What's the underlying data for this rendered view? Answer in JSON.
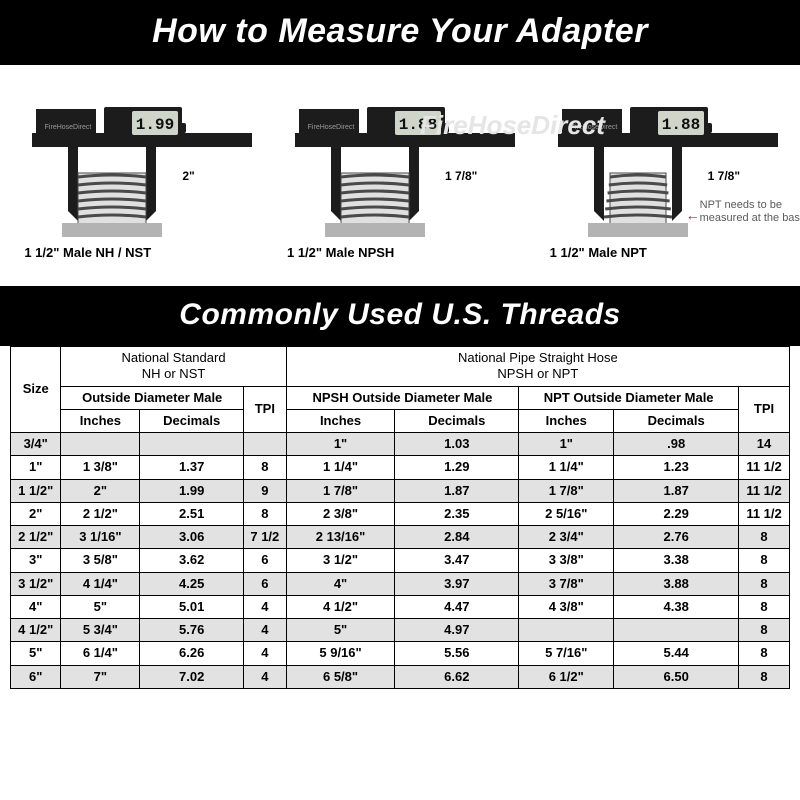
{
  "titles": {
    "main": "How to Measure Your Adapter",
    "sub": "Commonly Used U.S. Threads"
  },
  "watermarks": {
    "brand": "FireHoseDirect",
    "caliper_brand": "FireHoseDirect"
  },
  "diagrams": [
    {
      "reading": "1.99",
      "measure": "2\"",
      "label": "1 1/2\" Male NH / NST",
      "tapered": false,
      "note": null
    },
    {
      "reading": "1.88",
      "measure": "1 7/8\"",
      "label": "1 1/2\" Male NPSH",
      "tapered": false,
      "note": null
    },
    {
      "reading": "1.88",
      "measure": "1 7/8\"",
      "label": "1 1/2\" Male NPT",
      "tapered": true,
      "note": "NPT needs to be measured at the base"
    }
  ],
  "table": {
    "size_header": "Size",
    "groups": [
      {
        "title_top": "National Standard",
        "title_bot": "NH or NST"
      },
      {
        "title_top": "National Pipe Straight Hose",
        "title_bot": "NPSH or NPT"
      }
    ],
    "subheaders": {
      "nh_od": "Outside Diameter Male",
      "tpi": "TPI",
      "npsh_od": "NPSH Outside Diameter Male",
      "npt_od": "NPT Outside Diameter Male",
      "inches": "Inches",
      "decimals": "Decimals"
    },
    "rows": [
      {
        "size": "3/4\"",
        "nh_in": "",
        "nh_dec": "",
        "nh_tpi": "",
        "npsh_in": "1\"",
        "npsh_dec": "1.03",
        "npt_in": "1\"",
        "npt_dec": ".98",
        "pipe_tpi": "14"
      },
      {
        "size": "1\"",
        "nh_in": "1 3/8\"",
        "nh_dec": "1.37",
        "nh_tpi": "8",
        "npsh_in": "1 1/4\"",
        "npsh_dec": "1.29",
        "npt_in": "1 1/4\"",
        "npt_dec": "1.23",
        "pipe_tpi": "11 1/2"
      },
      {
        "size": "1 1/2\"",
        "nh_in": "2\"",
        "nh_dec": "1.99",
        "nh_tpi": "9",
        "npsh_in": "1 7/8\"",
        "npsh_dec": "1.87",
        "npt_in": "1 7/8\"",
        "npt_dec": "1.87",
        "pipe_tpi": "11 1/2"
      },
      {
        "size": "2\"",
        "nh_in": "2 1/2\"",
        "nh_dec": "2.51",
        "nh_tpi": "8",
        "npsh_in": "2 3/8\"",
        "npsh_dec": "2.35",
        "npt_in": "2 5/16\"",
        "npt_dec": "2.29",
        "pipe_tpi": "11 1/2"
      },
      {
        "size": "2 1/2\"",
        "nh_in": "3 1/16\"",
        "nh_dec": "3.06",
        "nh_tpi": "7 1/2",
        "npsh_in": "2 13/16\"",
        "npsh_dec": "2.84",
        "npt_in": "2 3/4\"",
        "npt_dec": "2.76",
        "pipe_tpi": "8"
      },
      {
        "size": "3\"",
        "nh_in": "3 5/8\"",
        "nh_dec": "3.62",
        "nh_tpi": "6",
        "npsh_in": "3 1/2\"",
        "npsh_dec": "3.47",
        "npt_in": "3 3/8\"",
        "npt_dec": "3.38",
        "pipe_tpi": "8"
      },
      {
        "size": "3 1/2\"",
        "nh_in": "4 1/4\"",
        "nh_dec": "4.25",
        "nh_tpi": "6",
        "npsh_in": "4\"",
        "npsh_dec": "3.97",
        "npt_in": "3 7/8\"",
        "npt_dec": "3.88",
        "pipe_tpi": "8"
      },
      {
        "size": "4\"",
        "nh_in": "5\"",
        "nh_dec": "5.01",
        "nh_tpi": "4",
        "npsh_in": "4 1/2\"",
        "npsh_dec": "4.47",
        "npt_in": "4 3/8\"",
        "npt_dec": "4.38",
        "pipe_tpi": "8"
      },
      {
        "size": "4 1/2\"",
        "nh_in": "5 3/4\"",
        "nh_dec": "5.76",
        "nh_tpi": "4",
        "npsh_in": "5\"",
        "npsh_dec": "4.97",
        "npt_in": "",
        "npt_dec": "",
        "pipe_tpi": "8"
      },
      {
        "size": "5\"",
        "nh_in": "6 1/4\"",
        "nh_dec": "6.26",
        "nh_tpi": "4",
        "npsh_in": "5 9/16\"",
        "npsh_dec": "5.56",
        "npt_in": "5 7/16\"",
        "npt_dec": "5.44",
        "pipe_tpi": "8"
      },
      {
        "size": "6\"",
        "nh_in": "7\"",
        "nh_dec": "7.02",
        "nh_tpi": "4",
        "npsh_in": "6 5/8\"",
        "npsh_dec": "6.62",
        "npt_in": "6 1/2\"",
        "npt_dec": "6.50",
        "pipe_tpi": "8"
      }
    ]
  },
  "style": {
    "colors": {
      "page_bg": "#ffffff",
      "bar_bg": "#000000",
      "bar_text": "#ffffff",
      "table_border": "#000000",
      "row_shade": "#e2e2e2",
      "caliper_body": "#1c1c1c",
      "caliper_display_bg": "#cfd6c9",
      "caliper_display_text": "#101010",
      "fitting_fill": "#e0e0e0",
      "fitting_stroke": "#4a4a4a",
      "npt_arrow": "#d8151b",
      "watermark": "#e5e5e5"
    },
    "fonts": {
      "title_main_pt": 34,
      "title_sub_pt": 30,
      "table_pt": 13,
      "diagram_label_pt": 13
    }
  }
}
